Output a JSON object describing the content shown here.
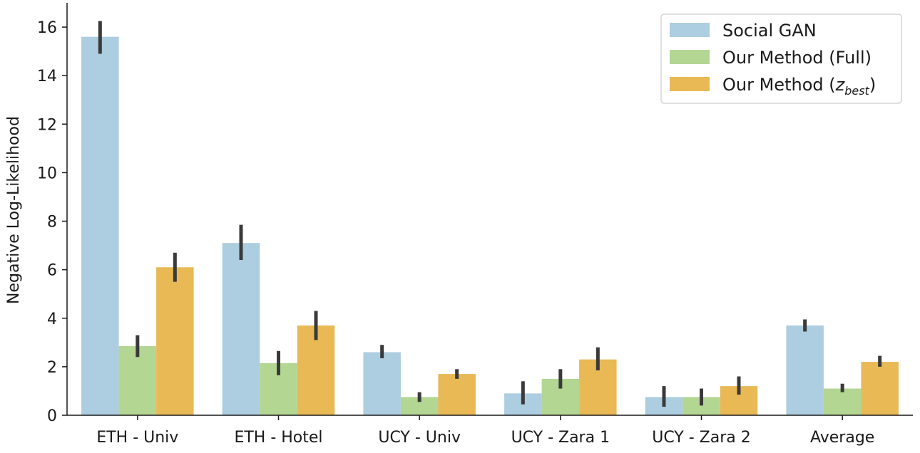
{
  "chart_data": {
    "type": "bar",
    "categories": [
      "ETH - Univ",
      "ETH - Hotel",
      "UCY - Univ",
      "UCY - Zara 1",
      "UCY - Zara 2",
      "Average"
    ],
    "ylabel": "Negative Log-Likelihood",
    "xlabel": "",
    "ylim": [
      0,
      17
    ],
    "yticks": [
      0,
      2,
      4,
      6,
      8,
      10,
      12,
      14,
      16
    ],
    "grid": false,
    "legend_position": "top-right",
    "series": [
      {
        "name": "Social GAN",
        "color": "#adcde0",
        "values": [
          15.6,
          7.1,
          2.6,
          0.9,
          0.75,
          3.7
        ],
        "err_low": [
          14.9,
          6.4,
          2.35,
          0.45,
          0.35,
          3.45
        ],
        "err_high": [
          16.25,
          7.85,
          2.9,
          1.4,
          1.2,
          3.95
        ]
      },
      {
        "name": "Our Method (Full)",
        "name_prefix": "Our Method (Full)",
        "name_math": "",
        "name_math_sub": "",
        "name_suffix": "",
        "color": "#b3d693",
        "values": [
          2.85,
          2.15,
          0.75,
          1.5,
          0.75,
          1.1
        ],
        "err_low": [
          2.4,
          1.65,
          0.55,
          1.1,
          0.4,
          0.95
        ],
        "err_high": [
          3.3,
          2.65,
          0.95,
          1.9,
          1.1,
          1.3
        ]
      },
      {
        "name": "Our Method (z_best)",
        "name_prefix": "Our Method (",
        "name_math": "z",
        "name_math_sub": "best",
        "name_suffix": ")",
        "color": "#e8b955",
        "values": [
          6.1,
          3.7,
          1.7,
          2.3,
          1.2,
          2.2
        ],
        "err_low": [
          5.5,
          3.1,
          1.5,
          1.85,
          0.85,
          2.0
        ],
        "err_high": [
          6.7,
          4.3,
          1.9,
          2.8,
          1.6,
          2.45
        ]
      }
    ]
  }
}
